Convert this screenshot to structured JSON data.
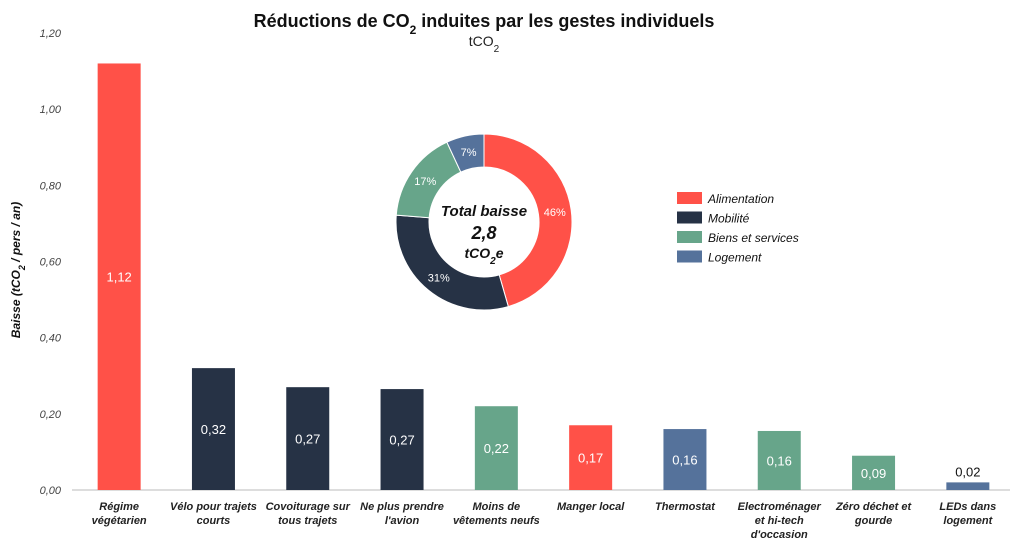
{
  "chart_data": {
    "type": "bar",
    "title_main": "Réductions de CO",
    "title_sub2": "2",
    "title_rest": " induites par les gestes individuels",
    "subtitle_main": "tCO",
    "subtitle_sub2": "2",
    "ylabel_main": "Baisse (tCO",
    "ylabel_sub2": "2",
    "ylabel_rest": " / pers / an)",
    "ylim": [
      0,
      1.2
    ],
    "yticks": [
      "0,00",
      "0,20",
      "0,40",
      "0,60",
      "0,80",
      "1,00",
      "1,20"
    ],
    "grid": false,
    "bars": [
      {
        "lines": [
          "Régime",
          "végétarien"
        ],
        "value": 1.12,
        "label": "1,12",
        "group": "Alimentation"
      },
      {
        "lines": [
          "Vélo pour trajets",
          "courts"
        ],
        "value": 0.32,
        "label": "0,32",
        "group": "Mobilité"
      },
      {
        "lines": [
          "Covoiturage sur",
          "tous trajets"
        ],
        "value": 0.27,
        "label": "0,27",
        "group": "Mobilité"
      },
      {
        "lines": [
          "Ne plus prendre",
          "l'avion"
        ],
        "value": 0.265,
        "label": "0,27",
        "group": "Mobilité"
      },
      {
        "lines": [
          "Moins de",
          "vêtements neufs"
        ],
        "value": 0.22,
        "label": "0,22",
        "group": "Biens et services"
      },
      {
        "lines": [
          "Manger local"
        ],
        "value": 0.17,
        "label": "0,17",
        "group": "Alimentation"
      },
      {
        "lines": [
          "Thermostat"
        ],
        "value": 0.16,
        "label": "0,16",
        "group": "Logement"
      },
      {
        "lines": [
          "Electroménager",
          "et hi-tech",
          "d'occasion"
        ],
        "value": 0.155,
        "label": "0,16",
        "group": "Biens et services"
      },
      {
        "lines": [
          "Zéro déchet et",
          "gourde"
        ],
        "value": 0.09,
        "label": "0,09",
        "group": "Biens et services"
      },
      {
        "lines": [
          "LEDs dans",
          "logement"
        ],
        "value": 0.02,
        "label": "0,02",
        "group": "Logement"
      }
    ],
    "colors": {
      "Alimentation": "#FF5148",
      "Mobilité": "#263245",
      "Biens et services": "#67A58A",
      "Logement": "#55729B"
    },
    "legend": {
      "placement": "right",
      "entries": [
        {
          "name": "Alimentation",
          "color": "#FF5148"
        },
        {
          "name": "Mobilité",
          "color": "#263245"
        },
        {
          "name": "Biens et services",
          "color": "#67A58A"
        },
        {
          "name": "Logement",
          "color": "#55729B"
        }
      ]
    },
    "donut": {
      "type": "pie",
      "slices": [
        {
          "name": "Alimentation",
          "value": 46,
          "label": "46%",
          "color": "#FF5148"
        },
        {
          "name": "Mobilité",
          "value": 31,
          "label": "31%",
          "color": "#263245"
        },
        {
          "name": "Biens et services",
          "value": 17,
          "label": "17%",
          "color": "#67A58A"
        },
        {
          "name": "Logement",
          "value": 7,
          "label": "7%",
          "color": "#55729B"
        }
      ],
      "center_line1": "Total baisse",
      "center_line2": "2,8",
      "center_line3_main": "tCO",
      "center_line3_sub": "2",
      "center_line3_rest": "e"
    }
  }
}
